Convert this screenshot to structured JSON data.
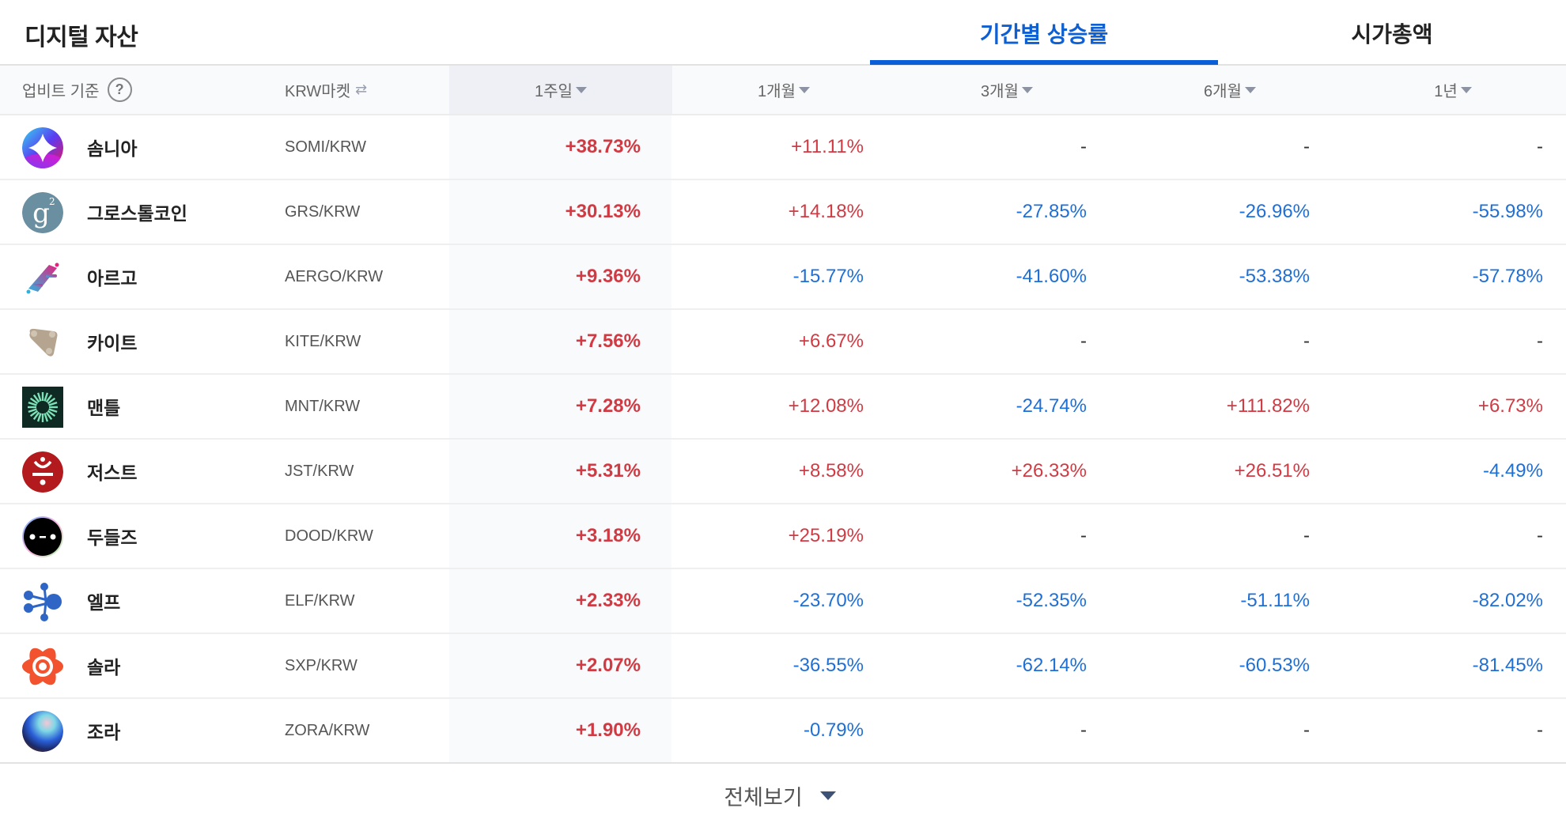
{
  "header": {
    "title": "디지털 자산",
    "tabs": [
      {
        "label": "기간별 상승률",
        "active": true
      },
      {
        "label": "시가총액",
        "active": false
      }
    ]
  },
  "table": {
    "columns": {
      "base": "업비트 기준",
      "help": "?",
      "market": "KRW마켓",
      "market_icon": "swap-icon",
      "periods": [
        "1주일",
        "1개월",
        "3개월",
        "6개월",
        "1년"
      ],
      "active_period": "1주일"
    },
    "rows": [
      {
        "name": "솜니아",
        "pair": "SOMI/KRW",
        "icon": "somnia",
        "values": [
          "+38.73%",
          "+11.11%",
          "-",
          "-",
          "-"
        ]
      },
      {
        "name": "그로스톨코인",
        "pair": "GRS/KRW",
        "icon": "groestlcoin",
        "values": [
          "+30.13%",
          "+14.18%",
          "-27.85%",
          "-26.96%",
          "-55.98%"
        ]
      },
      {
        "name": "아르고",
        "pair": "AERGO/KRW",
        "icon": "aergo",
        "values": [
          "+9.36%",
          "-15.77%",
          "-41.60%",
          "-53.38%",
          "-57.78%"
        ]
      },
      {
        "name": "카이트",
        "pair": "KITE/KRW",
        "icon": "kite",
        "values": [
          "+7.56%",
          "+6.67%",
          "-",
          "-",
          "-"
        ]
      },
      {
        "name": "맨틀",
        "pair": "MNT/KRW",
        "icon": "mantle",
        "values": [
          "+7.28%",
          "+12.08%",
          "-24.74%",
          "+111.82%",
          "+6.73%"
        ]
      },
      {
        "name": "저스트",
        "pair": "JST/KRW",
        "icon": "just",
        "values": [
          "+5.31%",
          "+8.58%",
          "+26.33%",
          "+26.51%",
          "-4.49%"
        ]
      },
      {
        "name": "두들즈",
        "pair": "DOOD/KRW",
        "icon": "doodles",
        "values": [
          "+3.18%",
          "+25.19%",
          "-",
          "-",
          "-"
        ]
      },
      {
        "name": "엘프",
        "pair": "ELF/KRW",
        "icon": "aelf",
        "values": [
          "+2.33%",
          "-23.70%",
          "-52.35%",
          "-51.11%",
          "-82.02%"
        ]
      },
      {
        "name": "솔라",
        "pair": "SXP/KRW",
        "icon": "solar",
        "values": [
          "+2.07%",
          "-36.55%",
          "-62.14%",
          "-60.53%",
          "-81.45%"
        ]
      },
      {
        "name": "조라",
        "pair": "ZORA/KRW",
        "icon": "zora",
        "values": [
          "+1.90%",
          "-0.79%",
          "-",
          "-",
          "-"
        ]
      }
    ]
  },
  "footer": {
    "label": "전체보기"
  },
  "colors": {
    "up": "#d13a43",
    "down": "#1e6fd6",
    "accent": "#0a5fd9"
  }
}
